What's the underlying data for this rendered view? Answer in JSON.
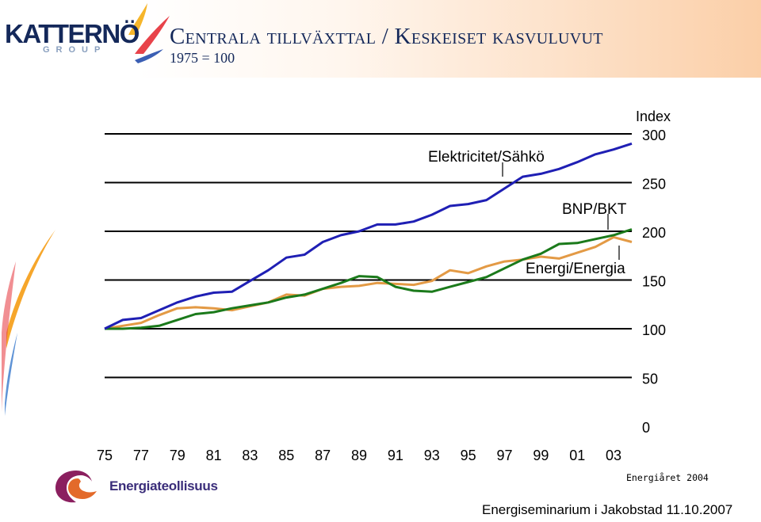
{
  "header": {
    "brand_name": "KATTERNÖ",
    "brand_sub": "GROUP",
    "title": "Centrala tillväxttal / Keskeiset kasvuluvut",
    "subtitle": "1975 = 100"
  },
  "footer": {
    "logo_text": "Energiateollisuus",
    "source": "Energiåret 2004",
    "event": "Energiseminarium i Jakobstad 11.10.2007"
  },
  "colors": {
    "electricity": "#1f1fb4",
    "gdp": "#1b7a1b",
    "energy": "#e39a45",
    "gridline": "#000000"
  },
  "chart_data": {
    "type": "line",
    "ylabel": "Index",
    "ylim": [
      0,
      300
    ],
    "yticks": [
      0,
      50,
      100,
      150,
      200,
      250,
      300
    ],
    "grid": true,
    "x_tick_labels": [
      "75",
      "77",
      "79",
      "81",
      "83",
      "85",
      "87",
      "89",
      "91",
      "93",
      "95",
      "97",
      "99",
      "01",
      "03"
    ],
    "x": [
      1975,
      1976,
      1977,
      1978,
      1979,
      1980,
      1981,
      1982,
      1983,
      1984,
      1985,
      1986,
      1987,
      1988,
      1989,
      1990,
      1991,
      1992,
      1993,
      1994,
      1995,
      1996,
      1997,
      1998,
      1999,
      2000,
      2001,
      2002,
      2003,
      2004
    ],
    "series": [
      {
        "name": "Elektricitet/Sähkö",
        "color_key": "electricity",
        "values": [
          100,
          109,
          111,
          119,
          127,
          133,
          137,
          138,
          149,
          160,
          173,
          176,
          189,
          196,
          200,
          207,
          207,
          210,
          217,
          226,
          228,
          232,
          244,
          256,
          259,
          264,
          271,
          279,
          284,
          290
        ]
      },
      {
        "name": "BNP/BKT",
        "color_key": "gdp",
        "values": [
          100,
          100,
          101,
          103,
          109,
          115,
          117,
          121,
          124,
          127,
          132,
          135,
          141,
          147,
          154,
          153,
          143,
          139,
          138,
          143,
          148,
          153,
          162,
          171,
          177,
          187,
          188,
          192,
          196,
          202
        ]
      },
      {
        "name": "Energi/Energia",
        "color_key": "energy",
        "values": [
          100,
          103,
          106,
          114,
          121,
          122,
          121,
          119,
          123,
          127,
          135,
          134,
          141,
          143,
          144,
          147,
          146,
          145,
          149,
          160,
          157,
          164,
          169,
          171,
          174,
          172,
          178,
          184,
          194,
          189
        ]
      }
    ],
    "annotations": [
      "Elektricitet/Sähkö",
      "BNP/BKT",
      "Energi/Energia"
    ]
  }
}
